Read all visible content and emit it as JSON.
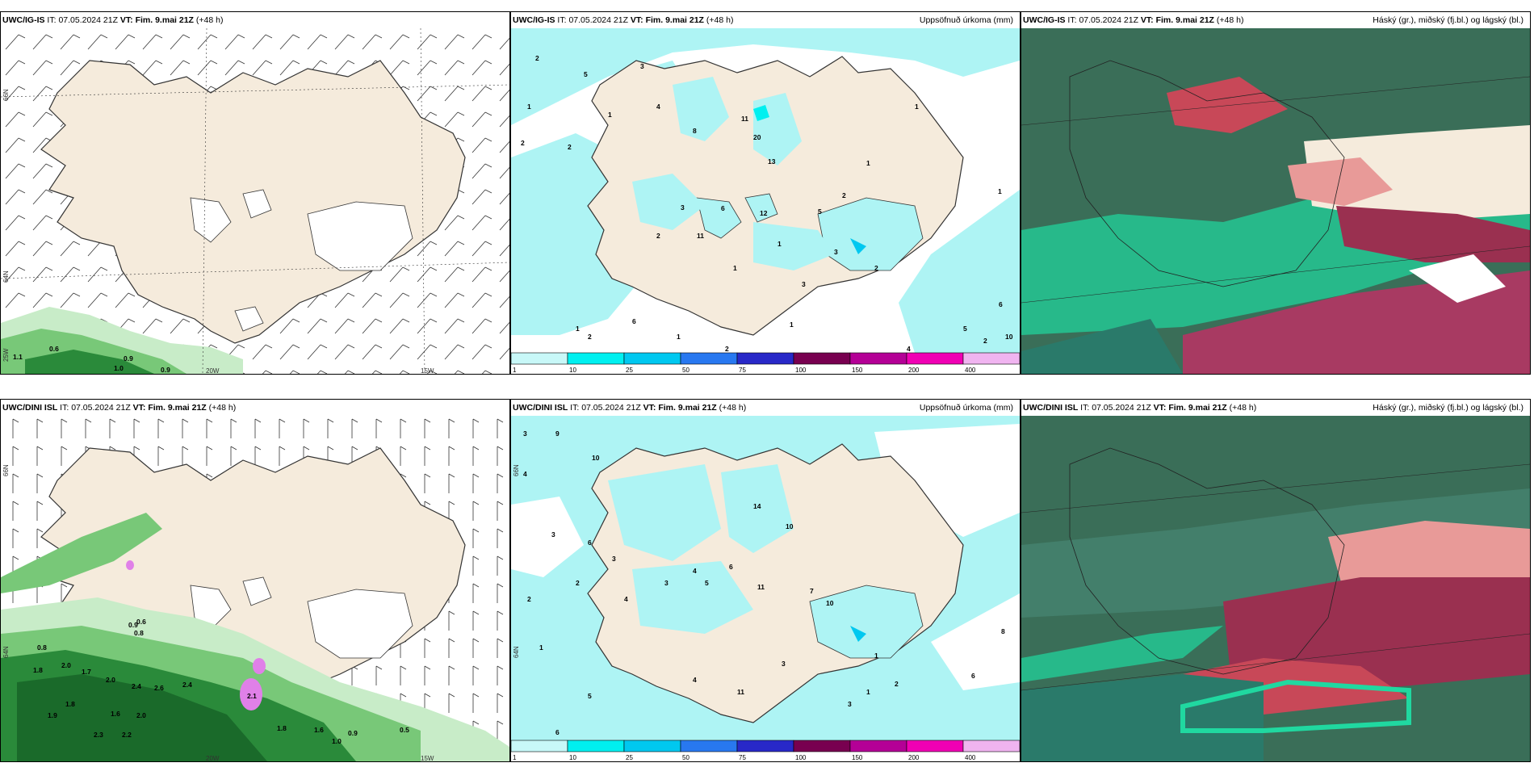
{
  "panels": [
    {
      "id": "p1",
      "model": "UWC/IG-IS",
      "it_label": "IT:",
      "it_value": "07.05.2024 21Z",
      "vt_label": "VT:",
      "vt_value": "Fim. 9.mai 21Z",
      "lead": "(+48 h)",
      "right_title": ""
    },
    {
      "id": "p2",
      "model": "UWC/IG-IS",
      "it_label": "IT:",
      "it_value": "07.05.2024 21Z",
      "vt_label": "VT:",
      "vt_value": "Fim. 9.mai 21Z",
      "lead": "(+48 h)",
      "right_title": "Uppsöfnuð úrkoma (mm)"
    },
    {
      "id": "p3",
      "model": "UWC/IG-IS",
      "it_label": "IT:",
      "it_value": "07.05.2024 21Z",
      "vt_label": "VT:",
      "vt_value": "Fim. 9.mai 21Z",
      "lead": "(+48 h)",
      "right_title": "Háský (gr.), miðský (fj.bl.) og lágský (bl.)"
    },
    {
      "id": "p4",
      "model": "UWC/DINI ISL",
      "it_label": "IT:",
      "it_value": "07.05.2024 21Z",
      "vt_label": "VT:",
      "vt_value": "Fim. 9.mai 21Z",
      "lead": "(+48 h)",
      "right_title": ""
    },
    {
      "id": "p5",
      "model": "UWC/DINI ISL",
      "it_label": "IT:",
      "it_value": "07.05.2024 21Z",
      "vt_label": "VT:",
      "vt_value": "Fim. 9.mai 21Z",
      "lead": "(+48 h)",
      "right_title": "Uppsöfnuð úrkoma (mm)"
    },
    {
      "id": "p6",
      "model": "UWC/DINI ISL",
      "it_label": "IT:",
      "it_value": "07.05.2024 21Z",
      "vt_label": "VT:",
      "vt_value": "Fim. 9.mai 21Z",
      "lead": "(+48 h)",
      "right_title": "Háský (gr.), miðský (fj.bl.) og lágský (bl.)"
    }
  ],
  "axis_labels": {
    "lat66": "66N",
    "lat64": "64N",
    "lon20": "20W",
    "lon15": "15W",
    "lon25": "25W"
  },
  "colorbar": {
    "ticks": [
      "1",
      "10",
      "25",
      "50",
      "75",
      "100",
      "150",
      "200",
      "400"
    ],
    "colors": [
      "#c8f8f8",
      "#00f0f0",
      "#00c8f0",
      "#2878f0",
      "#2828c8",
      "#780050",
      "#b40096",
      "#f000b4",
      "#f0b4f0"
    ]
  },
  "colors": {
    "land": "#f5ebdc",
    "cloud_land": "#ecdccb",
    "precip": "#aef4f4",
    "green1": "#c8ecc8",
    "green2": "#78c878",
    "green3": "#2a8a3a",
    "cloud_dark": "#3a6e58",
    "cloud_teal": "#20d8a0",
    "cloud_red": "#c84858",
    "cloud_pink": "#e89a98"
  },
  "p1_values": [
    "1.1",
    "0.6",
    "0.9",
    "1.0",
    "0.9"
  ],
  "p2_values": [
    "2",
    "1",
    "2",
    "5",
    "1",
    "2",
    "3",
    "4",
    "8",
    "11",
    "20",
    "13",
    "12",
    "6",
    "3",
    "2",
    "11",
    "1",
    "1",
    "2",
    "1",
    "1",
    "5",
    "3",
    "2",
    "10",
    "6",
    "1",
    "4",
    "2",
    "1",
    "2",
    "6",
    "5",
    "1",
    "3",
    "2",
    "1"
  ],
  "p4_values": [
    "0.8",
    "0.6",
    "0.8",
    "0.9",
    "2.0",
    "1.8",
    "1.7",
    "2.0",
    "2.4",
    "2.6",
    "2.4",
    "1.8",
    "1.9",
    "2.3",
    "2.2",
    "1.6",
    "2.0",
    "1.8",
    "1.6",
    "0.9",
    "1.0",
    "0.5",
    "2.1"
  ],
  "p5_values": [
    "3",
    "9",
    "4",
    "10",
    "14",
    "10",
    "11",
    "4",
    "3",
    "5",
    "6",
    "3",
    "4",
    "2",
    "3",
    "6",
    "7",
    "10",
    "3",
    "1",
    "2",
    "8",
    "6",
    "3",
    "11",
    "1",
    "4",
    "5",
    "6",
    "2",
    "1"
  ]
}
